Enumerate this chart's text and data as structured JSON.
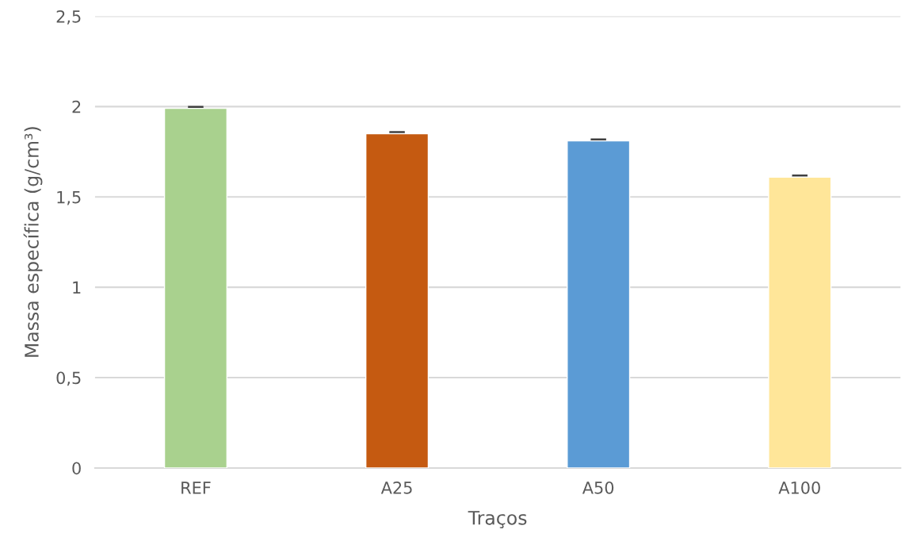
{
  "chart_data": {
    "type": "bar",
    "xlabel": "Traços",
    "ylabel": "Massa específica (g/cm³)",
    "categories": [
      "REF",
      "A25",
      "A50",
      "A100"
    ],
    "values": [
      1.99,
      1.85,
      1.81,
      1.61
    ],
    "errors": [
      0.005,
      0.005,
      0.005,
      0.005
    ],
    "colors": [
      "#a9d18e",
      "#c55a11",
      "#5b9bd5",
      "#ffe699"
    ],
    "ylim": [
      0,
      2.5
    ],
    "yticks": [
      {
        "value": 0,
        "label": "0"
      },
      {
        "value": 0.5,
        "label": "0,5"
      },
      {
        "value": 1,
        "label": "1"
      },
      {
        "value": 1.5,
        "label": "1,5"
      },
      {
        "value": 2,
        "label": "2"
      },
      {
        "value": 2.5,
        "label": "2,5"
      }
    ],
    "grid": "y"
  }
}
